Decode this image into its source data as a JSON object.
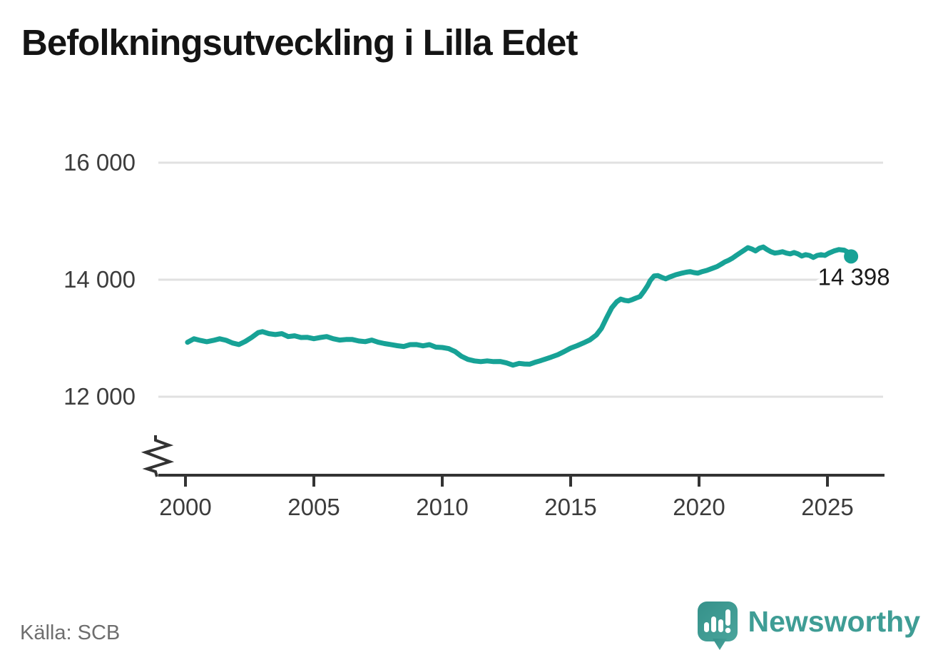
{
  "title": "Befolkningsutveckling i Lilla Edet",
  "source": "Källa: SCB",
  "branding": {
    "name": "Newsworthy",
    "text_color": "#3f9d95",
    "mark_color_dark": "#35918a",
    "mark_color_light": "#4aa59c"
  },
  "chart_data": {
    "type": "line",
    "title": "Befolkningsutveckling i Lilla Edet",
    "xlabel": "",
    "ylabel": "",
    "grid": "horizontal",
    "gridline_color": "#e1e1e1",
    "axis_color": "#333333",
    "tick_label_color": "#3c3c3c",
    "axis_break": true,
    "ylim": [
      11600,
      16400
    ],
    "xlim": [
      2000,
      2027.2
    ],
    "y_ticks": [
      {
        "value": 16000,
        "label": "16 000"
      },
      {
        "value": 14000,
        "label": "14 000"
      },
      {
        "value": 12000,
        "label": "12 000"
      }
    ],
    "x_ticks": [
      {
        "value": 2000,
        "label": "2000"
      },
      {
        "value": 2005,
        "label": "2005"
      },
      {
        "value": 2010,
        "label": "2010"
      },
      {
        "value": 2015,
        "label": "2015"
      },
      {
        "value": 2020,
        "label": "2020"
      },
      {
        "value": 2025,
        "label": "2025"
      }
    ],
    "end_label": "14 398",
    "end_value": 14398,
    "series": [
      {
        "name": "Befolkning",
        "color": "#17a296",
        "points": [
          [
            2000.08,
            12930
          ],
          [
            2000.33,
            12990
          ],
          [
            2000.58,
            12962
          ],
          [
            2000.83,
            12940
          ],
          [
            2001.08,
            12962
          ],
          [
            2001.33,
            12990
          ],
          [
            2001.58,
            12965
          ],
          [
            2001.83,
            12918
          ],
          [
            2002.08,
            12892
          ],
          [
            2002.33,
            12945
          ],
          [
            2002.58,
            13015
          ],
          [
            2002.83,
            13095
          ],
          [
            2003.0,
            13112
          ],
          [
            2003.25,
            13078
          ],
          [
            2003.5,
            13062
          ],
          [
            2003.75,
            13078
          ],
          [
            2004.0,
            13028
          ],
          [
            2004.25,
            13042
          ],
          [
            2004.5,
            13012
          ],
          [
            2004.75,
            13015
          ],
          [
            2005.0,
            12992
          ],
          [
            2005.25,
            13012
          ],
          [
            2005.5,
            13028
          ],
          [
            2005.75,
            12992
          ],
          [
            2006.0,
            12968
          ],
          [
            2006.25,
            12978
          ],
          [
            2006.5,
            12978
          ],
          [
            2006.75,
            12952
          ],
          [
            2007.0,
            12942
          ],
          [
            2007.25,
            12968
          ],
          [
            2007.5,
            12932
          ],
          [
            2007.75,
            12908
          ],
          [
            2008.0,
            12892
          ],
          [
            2008.25,
            12872
          ],
          [
            2008.5,
            12858
          ],
          [
            2008.75,
            12890
          ],
          [
            2009.0,
            12892
          ],
          [
            2009.25,
            12870
          ],
          [
            2009.5,
            12890
          ],
          [
            2009.75,
            12848
          ],
          [
            2010.0,
            12842
          ],
          [
            2010.25,
            12822
          ],
          [
            2010.5,
            12772
          ],
          [
            2010.75,
            12690
          ],
          [
            2011.0,
            12638
          ],
          [
            2011.25,
            12612
          ],
          [
            2011.5,
            12600
          ],
          [
            2011.75,
            12612
          ],
          [
            2012.0,
            12600
          ],
          [
            2012.25,
            12602
          ],
          [
            2012.5,
            12578
          ],
          [
            2012.75,
            12540
          ],
          [
            2013.0,
            12570
          ],
          [
            2013.2,
            12560
          ],
          [
            2013.4,
            12556
          ],
          [
            2013.6,
            12586
          ],
          [
            2013.8,
            12612
          ],
          [
            2014.0,
            12642
          ],
          [
            2014.25,
            12678
          ],
          [
            2014.5,
            12718
          ],
          [
            2014.75,
            12772
          ],
          [
            2015.0,
            12830
          ],
          [
            2015.25,
            12872
          ],
          [
            2015.5,
            12920
          ],
          [
            2015.75,
            12972
          ],
          [
            2016.0,
            13055
          ],
          [
            2016.2,
            13170
          ],
          [
            2016.4,
            13350
          ],
          [
            2016.6,
            13520
          ],
          [
            2016.8,
            13625
          ],
          [
            2016.95,
            13668
          ],
          [
            2017.1,
            13648
          ],
          [
            2017.25,
            13638
          ],
          [
            2017.4,
            13660
          ],
          [
            2017.55,
            13688
          ],
          [
            2017.7,
            13712
          ],
          [
            2017.85,
            13800
          ],
          [
            2018.0,
            13900
          ],
          [
            2018.1,
            13985
          ],
          [
            2018.25,
            14065
          ],
          [
            2018.4,
            14070
          ],
          [
            2018.55,
            14040
          ],
          [
            2018.7,
            14015
          ],
          [
            2018.85,
            14045
          ],
          [
            2019.1,
            14085
          ],
          [
            2019.3,
            14108
          ],
          [
            2019.5,
            14128
          ],
          [
            2019.65,
            14138
          ],
          [
            2019.8,
            14122
          ],
          [
            2019.95,
            14112
          ],
          [
            2020.1,
            14135
          ],
          [
            2020.3,
            14158
          ],
          [
            2020.5,
            14192
          ],
          [
            2020.7,
            14225
          ],
          [
            2020.85,
            14262
          ],
          [
            2021.0,
            14302
          ],
          [
            2021.15,
            14332
          ],
          [
            2021.3,
            14368
          ],
          [
            2021.45,
            14415
          ],
          [
            2021.6,
            14458
          ],
          [
            2021.75,
            14502
          ],
          [
            2021.9,
            14548
          ],
          [
            2022.05,
            14525
          ],
          [
            2022.2,
            14492
          ],
          [
            2022.35,
            14538
          ],
          [
            2022.5,
            14558
          ],
          [
            2022.65,
            14515
          ],
          [
            2022.8,
            14478
          ],
          [
            2022.95,
            14455
          ],
          [
            2023.1,
            14465
          ],
          [
            2023.25,
            14478
          ],
          [
            2023.4,
            14455
          ],
          [
            2023.55,
            14442
          ],
          [
            2023.7,
            14465
          ],
          [
            2023.85,
            14442
          ],
          [
            2024.0,
            14405
          ],
          [
            2024.15,
            14428
          ],
          [
            2024.3,
            14415
          ],
          [
            2024.45,
            14380
          ],
          [
            2024.6,
            14415
          ],
          [
            2024.75,
            14428
          ],
          [
            2024.9,
            14415
          ],
          [
            2025.05,
            14452
          ],
          [
            2025.25,
            14490
          ],
          [
            2025.45,
            14515
          ],
          [
            2025.65,
            14505
          ],
          [
            2025.8,
            14470
          ],
          [
            2025.92,
            14398
          ]
        ]
      }
    ]
  }
}
